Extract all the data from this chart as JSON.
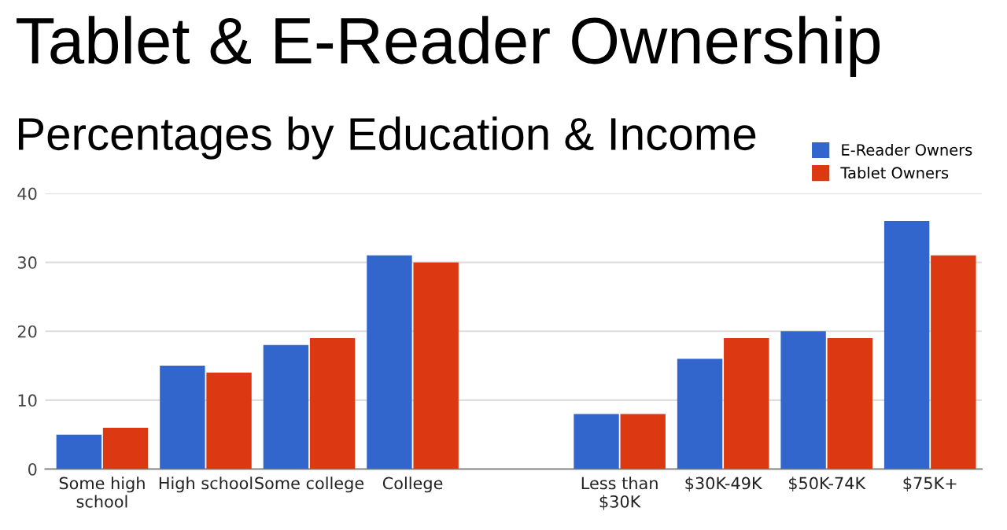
{
  "chart_data": {
    "type": "bar",
    "title": "Tablet & E-Reader Ownership",
    "subtitle": "Percentages by Education & Income",
    "categories": [
      "Some high\nschool",
      "High school",
      "Some college",
      "College",
      null,
      "Less than\n$30K",
      "$30K-49K",
      "$50K-74K",
      "$75K+"
    ],
    "series": [
      {
        "name": "E-Reader Owners",
        "color": "#3366cc",
        "values": [
          5,
          15,
          18,
          31,
          null,
          8,
          16,
          20,
          36
        ]
      },
      {
        "name": "Tablet Owners",
        "color": "#dc3912",
        "values": [
          6,
          14,
          19,
          30,
          null,
          8,
          19,
          19,
          31
        ]
      }
    ],
    "ylim": [
      0,
      40
    ],
    "yticks": [
      0,
      10,
      20,
      30,
      40
    ],
    "grid": "y",
    "legend": "top right"
  }
}
